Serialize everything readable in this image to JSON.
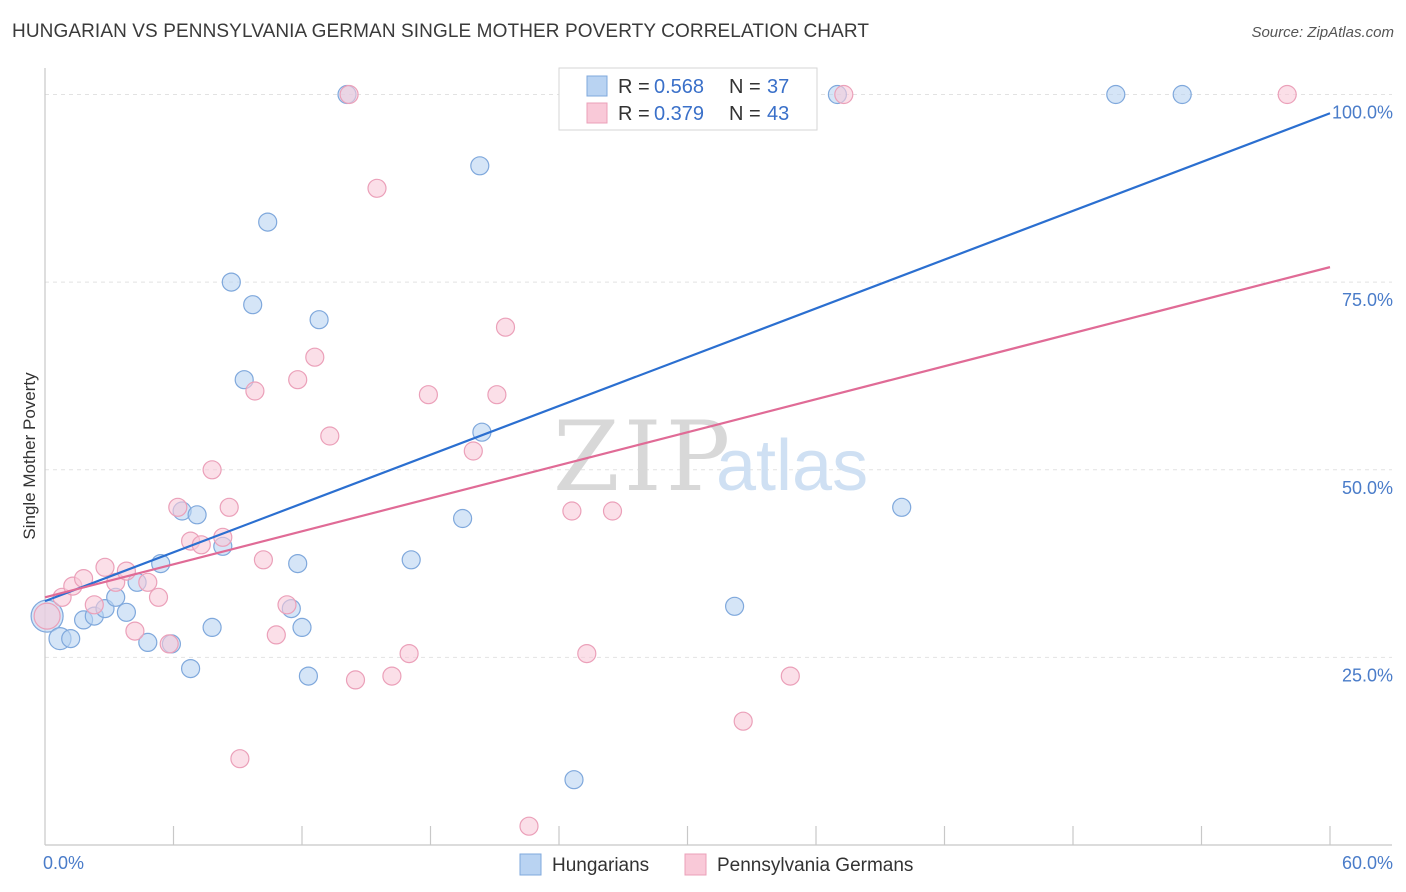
{
  "chart_data": {
    "type": "scatter",
    "title": "HUNGARIAN VS PENNSYLVANIA GERMAN SINGLE MOTHER POVERTY CORRELATION CHART",
    "source": "Source: ZipAtlas.com",
    "xlabel": "",
    "ylabel": "Single Mother Poverty",
    "xlim": [
      0,
      60
    ],
    "ylim": [
      0,
      103
    ],
    "x_tick_labels": [
      "0.0%",
      "60.0%"
    ],
    "y_ticks": [
      25,
      50,
      75,
      100
    ],
    "y_tick_labels": [
      "25.0%",
      "50.0%",
      "75.0%",
      "100.0%"
    ],
    "watermark": {
      "zip": "ZIP",
      "atlas": "atlas"
    },
    "legend": {
      "r_label": "R =",
      "n_label": "N =",
      "entries": [
        {
          "name": "Hungarians",
          "r": "0.568",
          "n": "37",
          "color": "#a9c9ef",
          "edge": "#7ba6de"
        },
        {
          "name": "Pennsylvania Germans",
          "r": "0.379",
          "n": "43",
          "color": "#f8c1d2",
          "edge": "#e893b0"
        }
      ]
    },
    "series": [
      {
        "name": "Hungarians",
        "point_color": "#b9d3f2",
        "point_edge": "#7fa8dc",
        "line_color": "#2b6fd0",
        "trend": {
          "x0": 0,
          "y0": 32.5,
          "x1": 60,
          "y1": 97.5
        },
        "points": [
          [
            0.1,
            30.5,
            16
          ],
          [
            0.7,
            27.5,
            11
          ],
          [
            1.2,
            27.5,
            9
          ],
          [
            1.8,
            30.0,
            9
          ],
          [
            2.3,
            30.5,
            9
          ],
          [
            2.8,
            31.5,
            9
          ],
          [
            3.3,
            33.0,
            9
          ],
          [
            3.8,
            31.0,
            9
          ],
          [
            4.3,
            35.0,
            9
          ],
          [
            4.8,
            27.0,
            9
          ],
          [
            5.4,
            37.5,
            9
          ],
          [
            5.9,
            26.8,
            9
          ],
          [
            6.4,
            44.5,
            9
          ],
          [
            6.8,
            23.5,
            9
          ],
          [
            7.1,
            44.0,
            9
          ],
          [
            7.8,
            29.0,
            9
          ],
          [
            8.3,
            39.8,
            9
          ],
          [
            8.7,
            75.0,
            9
          ],
          [
            9.3,
            62.0,
            9
          ],
          [
            9.7,
            72.0,
            9
          ],
          [
            10.4,
            83.0,
            9
          ],
          [
            11.5,
            31.5,
            9
          ],
          [
            11.8,
            37.5,
            9
          ],
          [
            12.0,
            29.0,
            9
          ],
          [
            12.3,
            22.5,
            9
          ],
          [
            12.8,
            70.0,
            9
          ],
          [
            14.1,
            100.0,
            9
          ],
          [
            17.1,
            38.0,
            9
          ],
          [
            19.5,
            43.5,
            9
          ],
          [
            20.3,
            90.5,
            9
          ],
          [
            20.4,
            55.0,
            9
          ],
          [
            24.7,
            8.7,
            9
          ],
          [
            32.2,
            31.8,
            9
          ],
          [
            37.0,
            100.0,
            9
          ],
          [
            40.0,
            45.0,
            9
          ],
          [
            50.0,
            100.0,
            9
          ],
          [
            53.1,
            100.0,
            9
          ]
        ]
      },
      {
        "name": "Pennsylvania Germans",
        "point_color": "#f9c9d8",
        "point_edge": "#eba0b9",
        "line_color": "#e06b96",
        "trend": {
          "x0": 0,
          "y0": 33.0,
          "x1": 60,
          "y1": 77.0
        },
        "points": [
          [
            0.1,
            30.5,
            13
          ],
          [
            0.8,
            33.0,
            9
          ],
          [
            1.3,
            34.5,
            9
          ],
          [
            1.8,
            35.5,
            9
          ],
          [
            2.3,
            32.0,
            9
          ],
          [
            2.8,
            37.0,
            9
          ],
          [
            3.3,
            35.0,
            9
          ],
          [
            3.8,
            36.5,
            9
          ],
          [
            4.2,
            28.5,
            9
          ],
          [
            4.8,
            35.0,
            9
          ],
          [
            5.3,
            33.0,
            9
          ],
          [
            5.8,
            26.8,
            9
          ],
          [
            6.2,
            45.0,
            9
          ],
          [
            6.8,
            40.5,
            9
          ],
          [
            7.3,
            40.0,
            9
          ],
          [
            7.8,
            50.0,
            9
          ],
          [
            8.3,
            41.0,
            9
          ],
          [
            8.6,
            45.0,
            9
          ],
          [
            9.1,
            11.5,
            9
          ],
          [
            9.8,
            60.5,
            9
          ],
          [
            10.2,
            38.0,
            9
          ],
          [
            10.8,
            28.0,
            9
          ],
          [
            11.3,
            32.0,
            9
          ],
          [
            11.8,
            62.0,
            9
          ],
          [
            12.6,
            65.0,
            9
          ],
          [
            13.3,
            54.5,
            9
          ],
          [
            14.2,
            100.0,
            9
          ],
          [
            14.5,
            22.0,
            9
          ],
          [
            15.5,
            87.5,
            9
          ],
          [
            16.2,
            22.5,
            9
          ],
          [
            17.0,
            25.5,
            9
          ],
          [
            17.9,
            60.0,
            9
          ],
          [
            20.0,
            52.5,
            9
          ],
          [
            21.1,
            60.0,
            9
          ],
          [
            21.5,
            69.0,
            9
          ],
          [
            22.6,
            2.5,
            9
          ],
          [
            24.6,
            44.5,
            9
          ],
          [
            25.3,
            25.5,
            9
          ],
          [
            26.5,
            44.5,
            9
          ],
          [
            32.6,
            16.5,
            9
          ],
          [
            34.8,
            22.5,
            9
          ],
          [
            37.3,
            100.0,
            9
          ],
          [
            58.0,
            100.0,
            9
          ]
        ]
      }
    ]
  }
}
